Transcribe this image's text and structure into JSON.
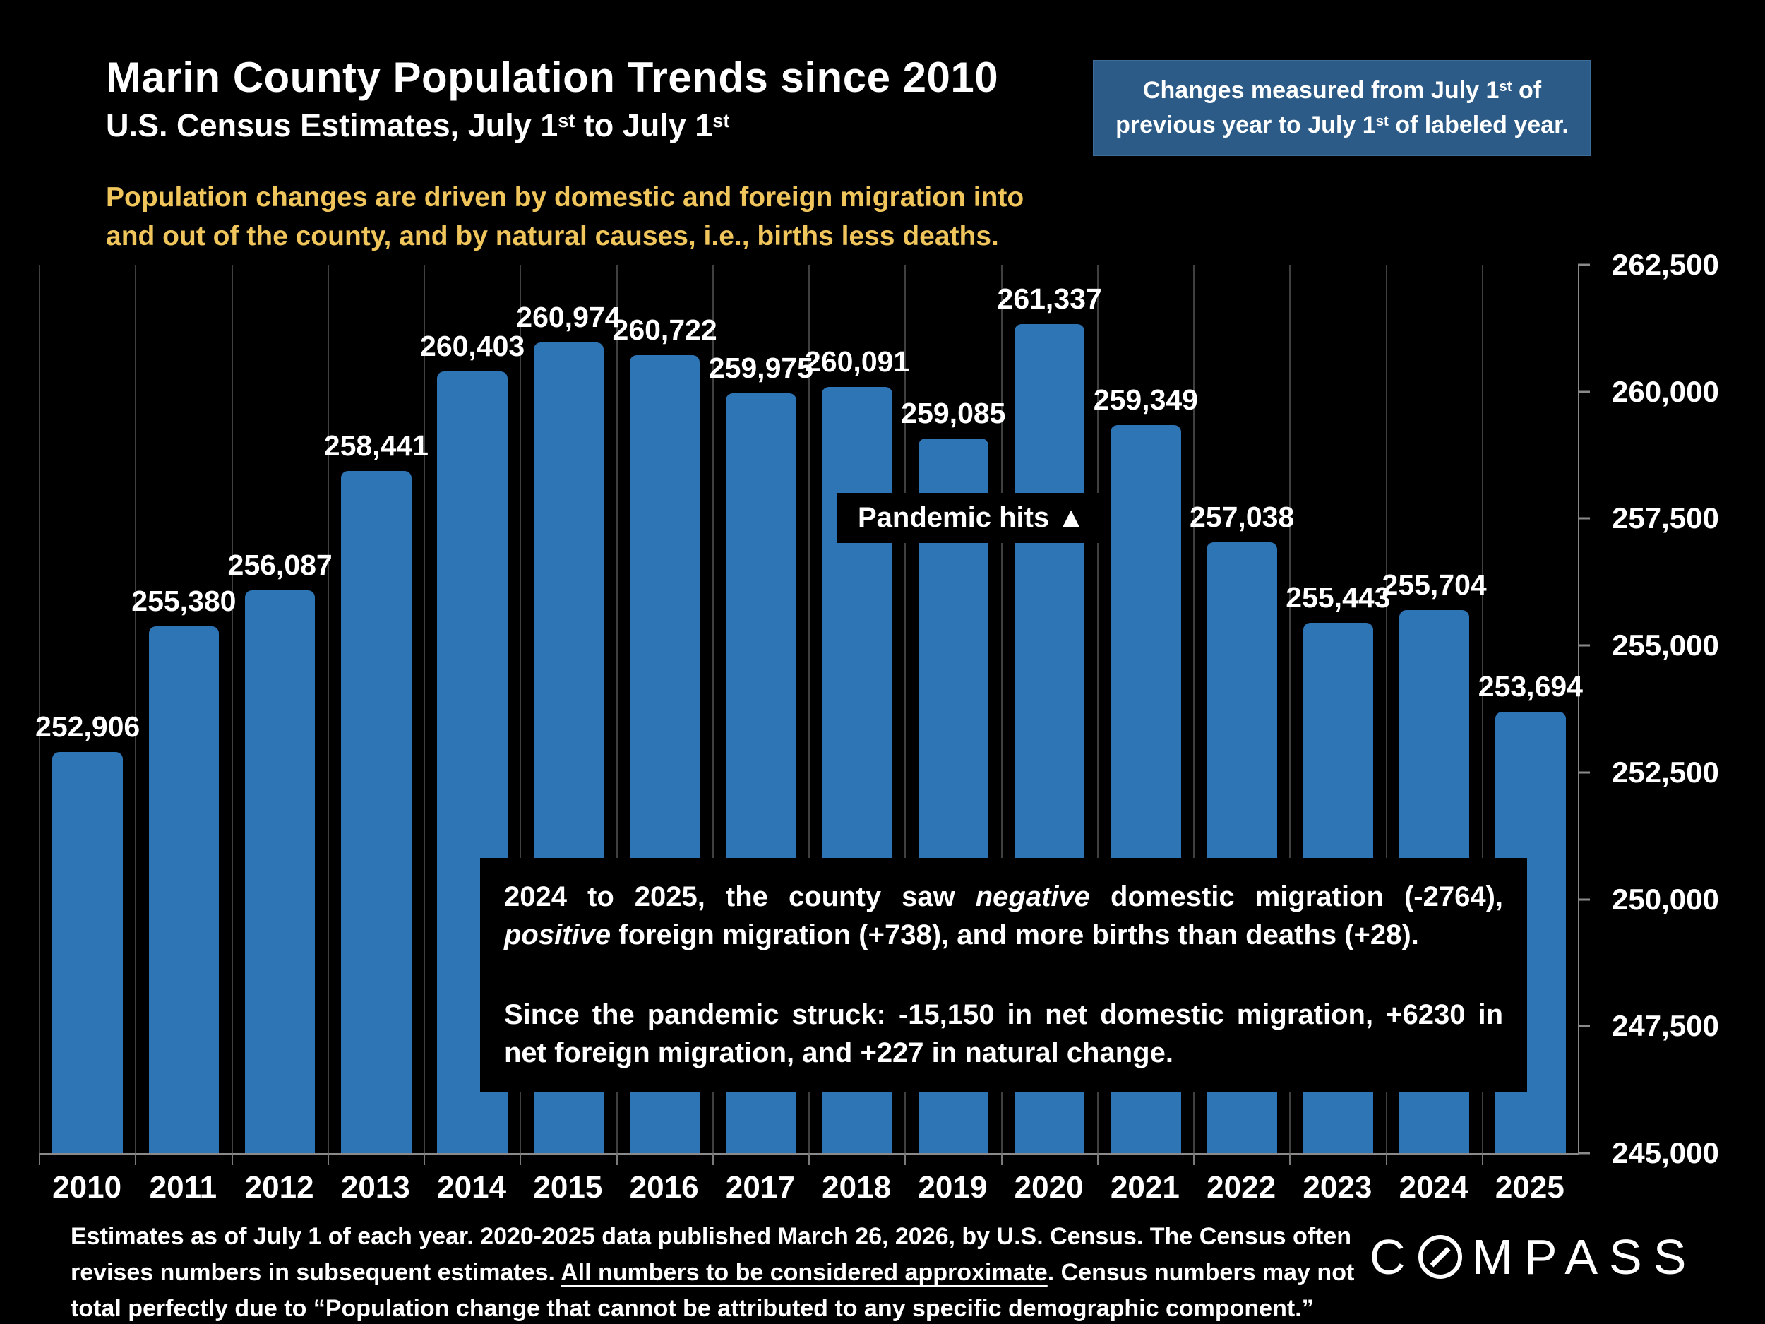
{
  "page": {
    "background": "#000000"
  },
  "header": {
    "title": "Marin County Population Trends since 2010",
    "subtitle": {
      "p1": "U.S. Census Estimates, July 1",
      "s1": "st",
      "p2": " to July 1",
      "s2": "st"
    },
    "note_box": {
      "bg": "#2B5B86",
      "l1a": "Changes measured from July 1",
      "l1sup": "st",
      "l1b": " of",
      "l2a": "previous year to July 1",
      "l2sup": "st",
      "l2b": " of labeled year."
    },
    "lede": "Population changes are driven by domestic and foreign migration into and out of the county, and by natural causes, i.e., births less deaths.",
    "lede_color": "#EFC55C"
  },
  "chart_data": {
    "type": "bar",
    "title": "Marin County population by year",
    "categories": [
      "2010",
      "2011",
      "2012",
      "2013",
      "2014",
      "2015",
      "2016",
      "2017",
      "2018",
      "2019",
      "2020",
      "2021",
      "2022",
      "2023",
      "2024",
      "2025"
    ],
    "values": [
      252906,
      255380,
      256087,
      258441,
      260403,
      260974,
      260722,
      259975,
      260091,
      259085,
      261337,
      259349,
      257038,
      255443,
      255704,
      253694
    ],
    "ylim": [
      245000,
      262500
    ],
    "yticks": [
      262500,
      260000,
      257500,
      255000,
      252500,
      250000,
      247500,
      245000
    ],
    "bar_color": "#2E75B6",
    "gridlines": "vertical",
    "legend": "none",
    "annotation": "Pandemic hits ▲"
  },
  "info_box": {
    "p1a": "2024 to 2025, the county saw ",
    "p1b": "negative",
    "p1c": " domestic migration (-2764), ",
    "p1d": "positive",
    "p1e": " foreign migration (+738), and more births than deaths (+28).",
    "p2": "Since the pandemic struck: -15,150 in net domestic migration, +6230 in net foreign migration, and +227 in natural change."
  },
  "footer": {
    "f1": "Estimates as of July 1 of each year. 2020-2025 data published March 26, 2026, by U.S. Census. The Census often revises numbers in subsequent estimates. ",
    "f2": "All numbers to be considered approximate",
    "f3": ". Census numbers may not total perfectly due to “Population change that cannot be attributed to any specific demographic component.”",
    "logo_prefix": "C",
    "logo_suffix": "MPASS"
  }
}
